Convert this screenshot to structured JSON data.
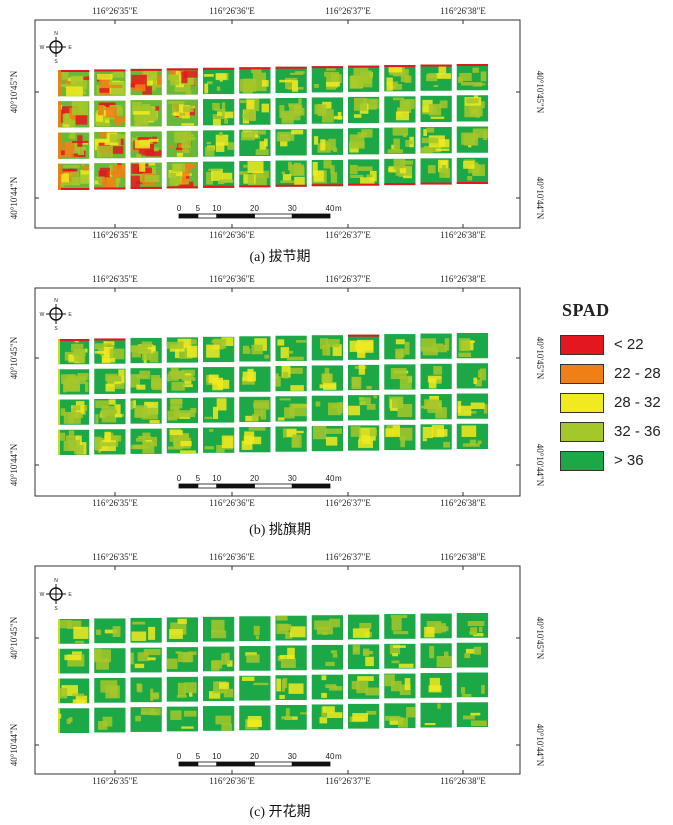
{
  "colors": {
    "lt22": "#e3171f",
    "c22_28": "#f07f15",
    "c28_32": "#f1ea20",
    "c32_36": "#a4c72a",
    "gt36": "#1da847"
  },
  "map_labels": {
    "lon": [
      "116°26'35\"E",
      "116°26'36\"E",
      "116°26'37\"E",
      "116°26'38\"E"
    ],
    "lat": [
      "40°10'45\"N",
      "40°10'44\"N"
    ],
    "scale": [
      "0",
      "5",
      "10",
      "20",
      "30",
      "40"
    ],
    "scale_unit": "m",
    "compass": {
      "n": "N",
      "s": "S",
      "e": "E",
      "w": "W"
    }
  },
  "panels": [
    {
      "caption": "(a) 拔节期"
    },
    {
      "caption": "(b) 挑旗期"
    },
    {
      "caption": "(c) 开花期"
    }
  ],
  "legend": {
    "title": "SPAD",
    "items": [
      {
        "label": "< 22",
        "color": "#e3171f"
      },
      {
        "label": "22 - 28",
        "color": "#f07f15"
      },
      {
        "label": "28 - 32",
        "color": "#f1ea20"
      },
      {
        "label": "32 - 36",
        "color": "#a4c72a"
      },
      {
        "label": "> 36",
        "color": "#1da847"
      }
    ]
  }
}
